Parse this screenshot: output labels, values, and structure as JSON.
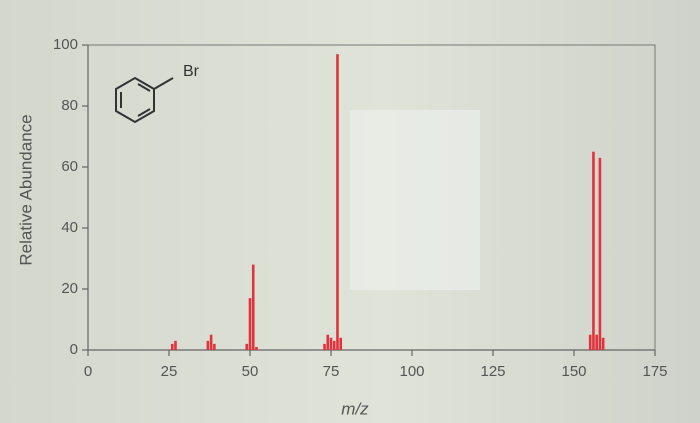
{
  "chart_data": {
    "type": "bar",
    "annotation": "Br",
    "xlabel": "m/z",
    "ylabel": "Relative Abundance",
    "x": [
      26,
      27,
      37,
      38,
      39,
      49,
      50,
      51,
      52,
      73,
      74,
      75,
      76,
      77,
      78,
      155,
      156,
      157,
      158,
      159
    ],
    "values": [
      2,
      3,
      3,
      5,
      2,
      2,
      17,
      28,
      1,
      2,
      5,
      4,
      3,
      97,
      4,
      5,
      65,
      5,
      63,
      4
    ],
    "color": "#e2323c",
    "xlim": [
      0,
      175
    ],
    "xticks": [
      0,
      25,
      50,
      75,
      100,
      125,
      150,
      175
    ],
    "ylim": [
      0,
      100
    ],
    "yticks": [
      0,
      20,
      40,
      60,
      80,
      100
    ]
  }
}
